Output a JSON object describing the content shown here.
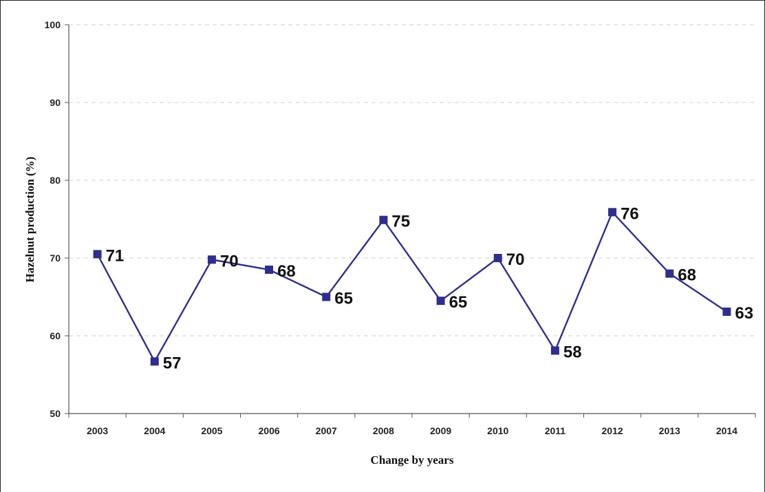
{
  "chart_data": {
    "type": "line",
    "title": "",
    "xlabel": "Change by years",
    "ylabel": "Hazelnut production (%)",
    "categories": [
      "2003",
      "2004",
      "2005",
      "2006",
      "2007",
      "2008",
      "2009",
      "2010",
      "2011",
      "2012",
      "2013",
      "2014"
    ],
    "series": [
      {
        "values": [
          70.5,
          56.7,
          69.8,
          68.5,
          65,
          74.9,
          64.5,
          70,
          58.1,
          75.9,
          68,
          63.1
        ],
        "labels": [
          "71",
          "57",
          "70",
          "68",
          "65",
          "75",
          "65",
          "70",
          "58",
          "76",
          "68",
          "63"
        ],
        "color": "#2e2e8f",
        "marker": "square"
      }
    ],
    "ylim": [
      50,
      100
    ],
    "yticks": [
      "50",
      "60",
      "70",
      "80",
      "90",
      "100"
    ],
    "grid": "horizontal dashed",
    "legend": "none"
  }
}
